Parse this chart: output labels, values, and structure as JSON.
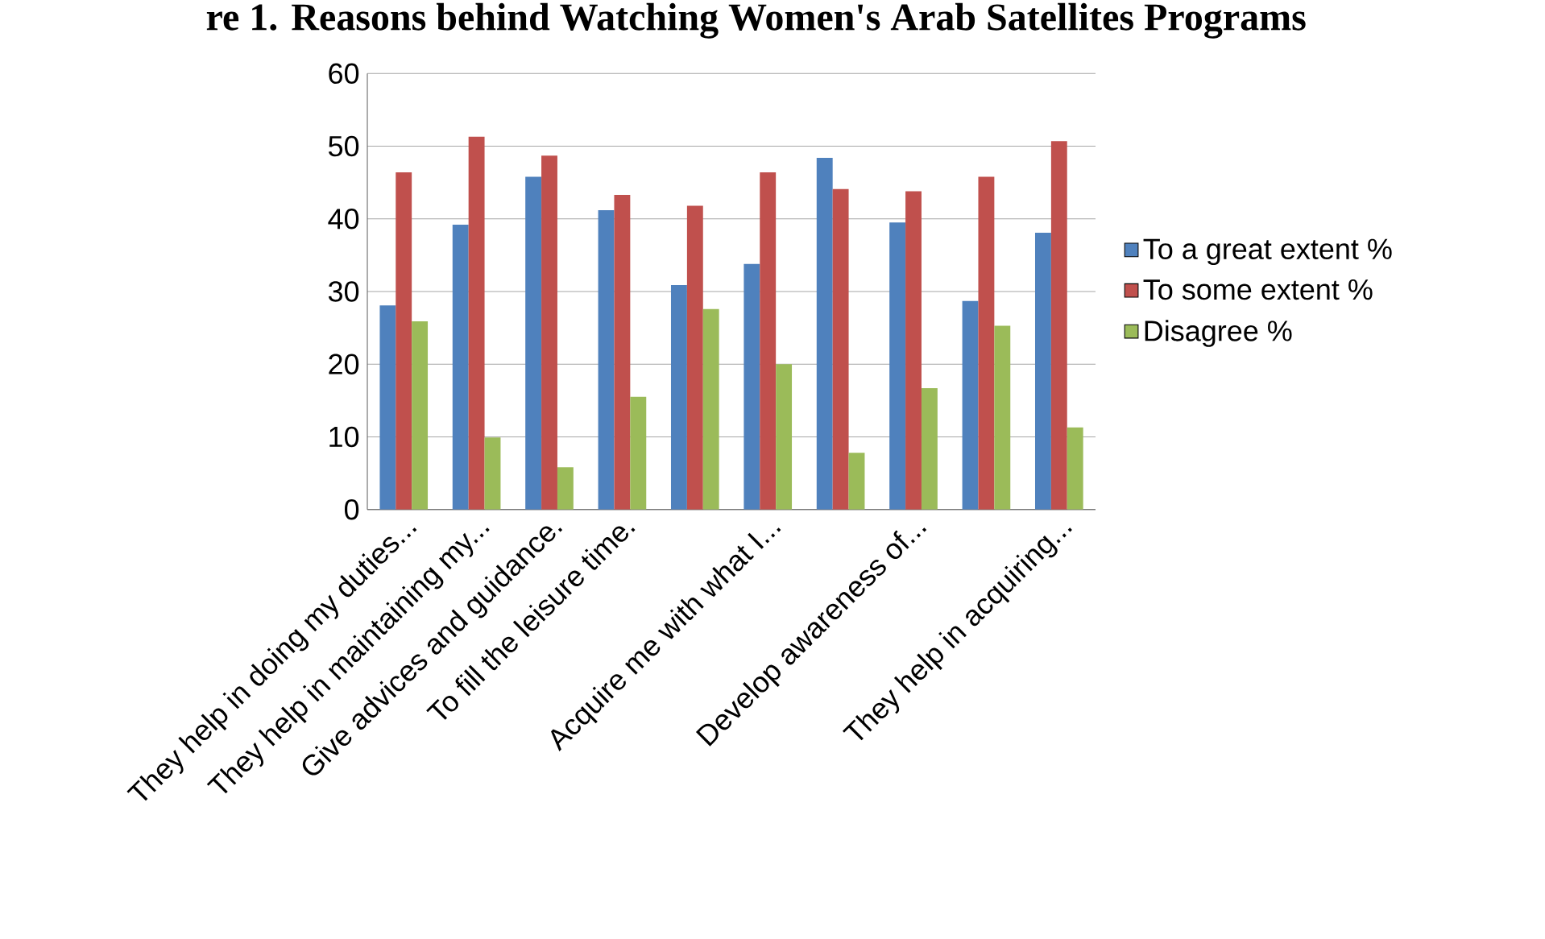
{
  "chart_data": {
    "type": "bar",
    "title": "re 1. Reasons behind Watching Women's Arab Satellites Programs",
    "categories": [
      "They help in doing my duties...",
      "They help in maintaining my...",
      "Give advices and guidance.",
      "To fill the leisure time.",
      null,
      "Acquire me with what I...",
      null,
      "Develop awareness of...",
      null,
      "They help in acquiring..."
    ],
    "series": [
      {
        "name": "To a great extent %",
        "color": "#4f81bd",
        "values": [
          28.1,
          39.2,
          45.8,
          41.2,
          30.9,
          33.8,
          48.4,
          39.5,
          28.7,
          38.1
        ]
      },
      {
        "name": "To some extent %",
        "color": "#c0504d",
        "values": [
          46.4,
          51.3,
          48.7,
          43.3,
          41.8,
          46.4,
          44.1,
          43.8,
          45.8,
          50.7
        ]
      },
      {
        "name": "Disagree %",
        "color": "#9bbb59",
        "values": [
          25.9,
          9.9,
          5.8,
          15.5,
          27.6,
          20.0,
          7.8,
          16.7,
          25.3,
          11.3
        ]
      }
    ],
    "ylim": [
      0,
      60
    ],
    "yticks": [
      0,
      10,
      20,
      30,
      40,
      50,
      60
    ],
    "grid": "y",
    "legend": "right"
  }
}
